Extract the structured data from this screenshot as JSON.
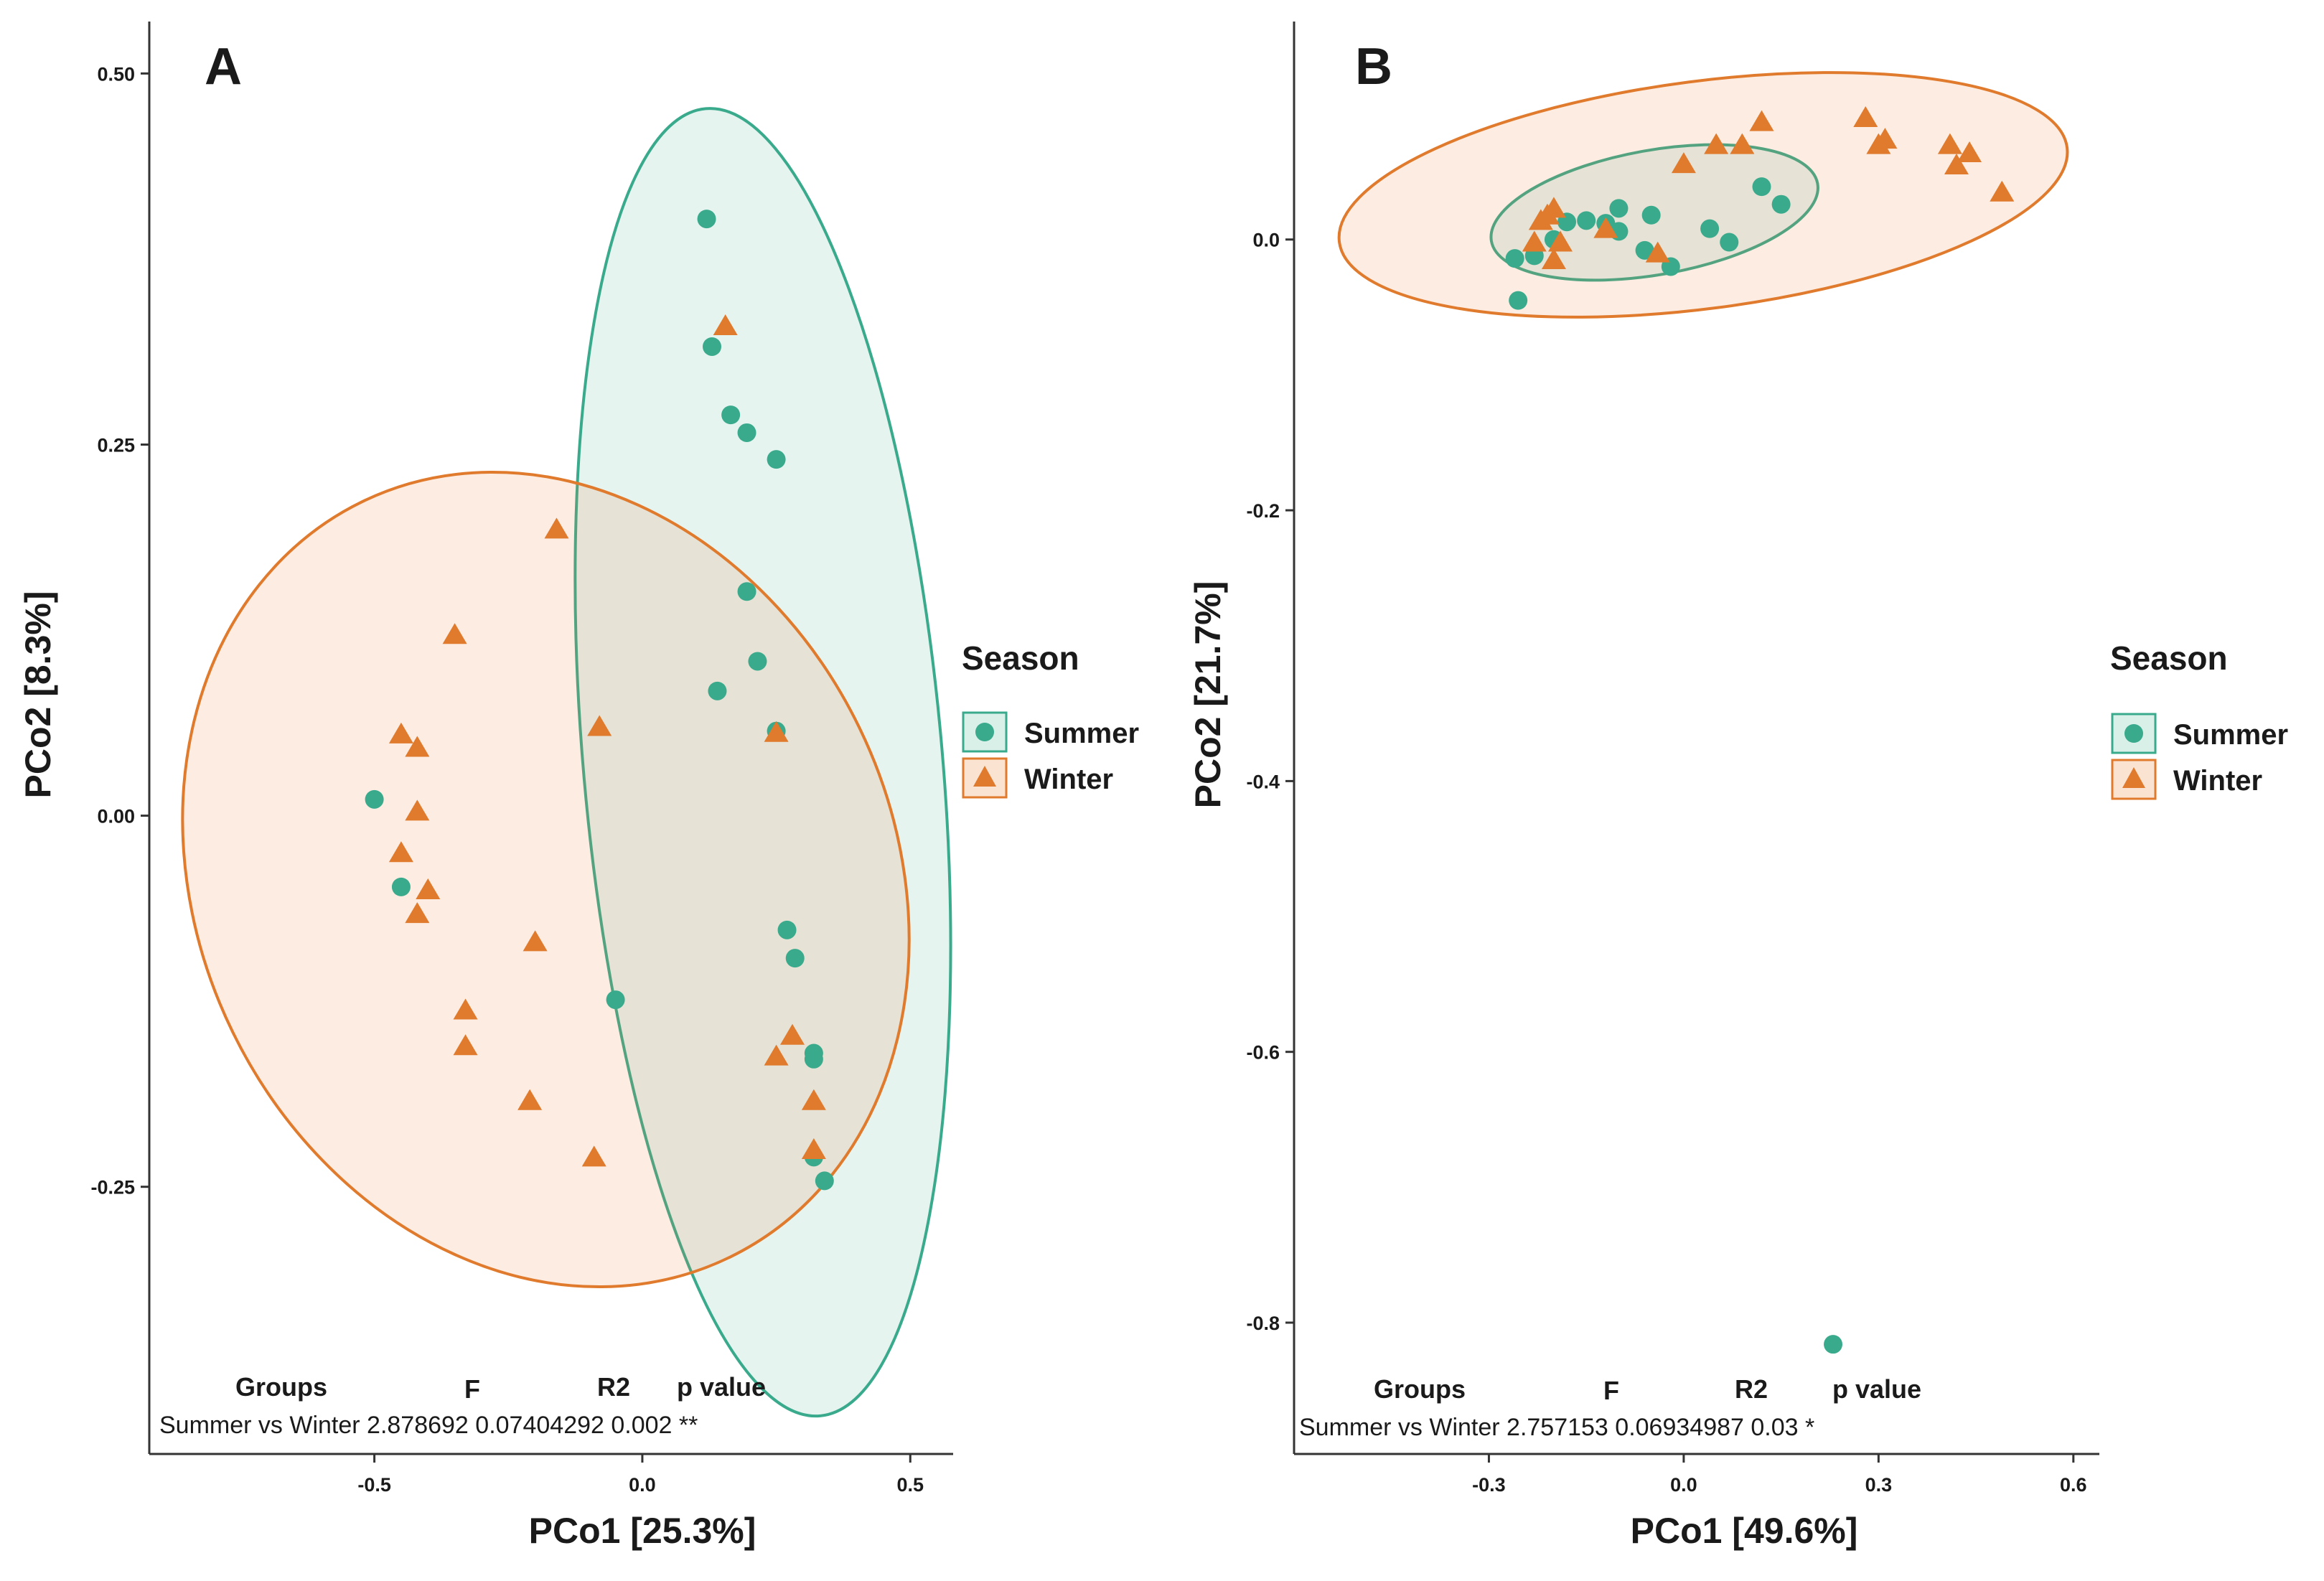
{
  "chart_data": [
    {
      "type": "scatter",
      "panel": "A",
      "xlabel": "PCo1 [25.3%]",
      "ylabel": "PCo2 [8.3%]",
      "xlim": [
        -0.92,
        0.58
      ],
      "ylim": [
        -0.43,
        0.535
      ],
      "xticks": [
        -0.5,
        0.0,
        0.5
      ],
      "xtick_labels": [
        "-0.5",
        "0.0",
        "0.5"
      ],
      "yticks": [
        -0.25,
        0.0,
        0.25,
        0.5
      ],
      "ytick_labels": [
        "-0.25",
        "0.00",
        "0.25",
        "0.50"
      ],
      "grid": false,
      "legend": {
        "title": "Season",
        "position": "right",
        "items": [
          {
            "label": "Summer",
            "color": "#3aaa8c",
            "marker": "circle"
          },
          {
            "label": "Winter",
            "color": "#e07a2c",
            "marker": "triangle"
          }
        ]
      },
      "series": [
        {
          "name": "Summer",
          "color": "#3aaa8c",
          "marker": "circle",
          "points": [
            [
              0.12,
              0.402
            ],
            [
              0.13,
              0.316
            ],
            [
              0.165,
              0.27
            ],
            [
              0.195,
              0.258
            ],
            [
              0.25,
              0.24
            ],
            [
              0.195,
              0.151
            ],
            [
              0.215,
              0.104
            ],
            [
              0.14,
              0.084
            ],
            [
              0.25,
              0.057
            ],
            [
              -0.5,
              0.011
            ],
            [
              -0.45,
              -0.048
            ],
            [
              -0.05,
              -0.124
            ],
            [
              0.27,
              -0.077
            ],
            [
              0.285,
              -0.096
            ],
            [
              0.32,
              -0.16
            ],
            [
              0.32,
              -0.164
            ],
            [
              0.32,
              -0.23
            ],
            [
              0.34,
              -0.246
            ]
          ],
          "ellipse": {
            "center": [
              0.225,
              0.036
            ],
            "rx": 0.335,
            "ry": 0.442,
            "angle_deg": -5
          }
        },
        {
          "name": "Winter",
          "color": "#e07a2c",
          "marker": "triangle",
          "points": [
            [
              0.155,
              0.33
            ],
            [
              -0.16,
              0.193
            ],
            [
              -0.35,
              0.122
            ],
            [
              -0.08,
              0.06
            ],
            [
              0.25,
              0.056
            ],
            [
              -0.45,
              0.055
            ],
            [
              -0.42,
              0.046
            ],
            [
              -0.42,
              0.003
            ],
            [
              -0.45,
              -0.025
            ],
            [
              -0.4,
              -0.05
            ],
            [
              -0.42,
              -0.066
            ],
            [
              -0.2,
              -0.085
            ],
            [
              -0.33,
              -0.131
            ],
            [
              -0.33,
              -0.155
            ],
            [
              0.28,
              -0.148
            ],
            [
              0.25,
              -0.162
            ],
            [
              0.32,
              -0.192
            ],
            [
              -0.21,
              -0.192
            ],
            [
              -0.09,
              -0.23
            ],
            [
              0.32,
              -0.225
            ]
          ],
          "ellipse": {
            "center": [
              -0.18,
              -0.043
            ],
            "rx": 0.65,
            "ry": 0.283,
            "angle_deg": -26
          }
        }
      ],
      "stats_table": {
        "headers": [
          "Groups",
          "F",
          "R2",
          "p value"
        ],
        "row": "Summer vs Winter 2.878692 0.07404292 0.002 **"
      }
    },
    {
      "type": "scatter",
      "panel": "B",
      "xlabel": "PCo1 [49.6%]",
      "ylabel": "PCo2 [21.7%]",
      "xlim": [
        -0.6,
        0.64
      ],
      "ylim": [
        -0.897,
        0.161
      ],
      "xticks": [
        -0.3,
        0.0,
        0.3,
        0.6
      ],
      "xtick_labels": [
        "-0.3",
        "0.0",
        "0.3",
        "0.6"
      ],
      "yticks": [
        -0.8,
        -0.6,
        -0.4,
        -0.2,
        0.0
      ],
      "ytick_labels": [
        "-0.8",
        "-0.6",
        "-0.4",
        "-0.2",
        "0.0"
      ],
      "grid": false,
      "legend": {
        "title": "Season",
        "position": "right",
        "items": [
          {
            "label": "Summer",
            "color": "#3aaa8c",
            "marker": "circle"
          },
          {
            "label": "Winter",
            "color": "#e07a2c",
            "marker": "triangle"
          }
        ]
      },
      "series": [
        {
          "name": "Summer",
          "color": "#3aaa8c",
          "marker": "circle",
          "points": [
            [
              -0.26,
              -0.014
            ],
            [
              -0.23,
              -0.012
            ],
            [
              -0.2,
              0.0
            ],
            [
              -0.18,
              0.013
            ],
            [
              -0.15,
              0.014
            ],
            [
              -0.12,
              0.012
            ],
            [
              -0.1,
              0.006
            ],
            [
              -0.1,
              0.023
            ],
            [
              -0.05,
              0.018
            ],
            [
              -0.06,
              -0.008
            ],
            [
              -0.02,
              -0.02
            ],
            [
              0.04,
              0.008
            ],
            [
              0.07,
              -0.002
            ],
            [
              0.12,
              0.039
            ],
            [
              0.15,
              0.026
            ],
            [
              -0.255,
              -0.045
            ],
            [
              0.23,
              -0.816
            ]
          ],
          "ellipse": {
            "center": [
              -0.045,
              0.02
            ],
            "rx": 0.255,
            "ry": 0.046,
            "angle_deg": -10
          }
        },
        {
          "name": "Winter",
          "color": "#e07a2c",
          "marker": "triangle",
          "points": [
            [
              -0.23,
              -0.002
            ],
            [
              -0.22,
              0.014
            ],
            [
              -0.21,
              0.018
            ],
            [
              -0.2,
              0.023
            ],
            [
              -0.2,
              -0.015
            ],
            [
              -0.19,
              -0.002
            ],
            [
              -0.12,
              0.008
            ],
            [
              -0.04,
              -0.01
            ],
            [
              0.0,
              0.056
            ],
            [
              0.05,
              0.07
            ],
            [
              0.09,
              0.07
            ],
            [
              0.12,
              0.087
            ],
            [
              0.28,
              0.09
            ],
            [
              0.3,
              0.07
            ],
            [
              0.31,
              0.074
            ],
            [
              0.41,
              0.07
            ],
            [
              0.42,
              0.055
            ],
            [
              0.44,
              0.064
            ],
            [
              0.49,
              0.035
            ]
          ],
          "ellipse": {
            "center": [
              0.03,
              0.033
            ],
            "rx": 0.565,
            "ry": 0.084,
            "angle_deg": -7.4
          }
        }
      ],
      "stats_table": {
        "headers": [
          "Groups",
          "F",
          "R2",
          "p value"
        ],
        "row": "Summer vs Winter 2.757153  0.06934987 0.03 *"
      }
    }
  ]
}
